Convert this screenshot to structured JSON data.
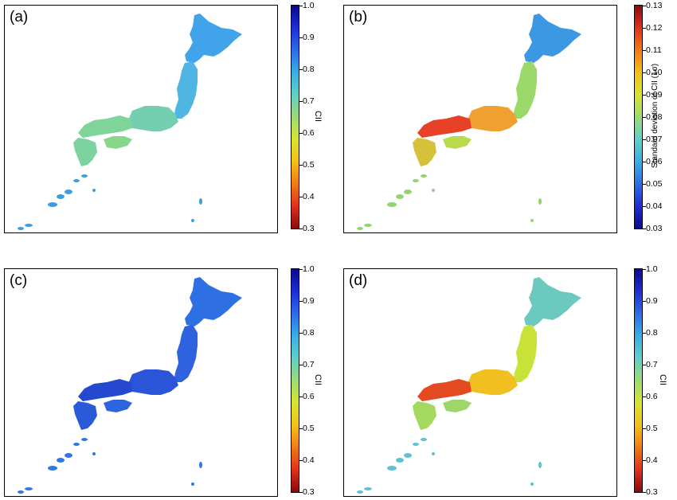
{
  "panels": [
    {
      "id": "a",
      "label": "(a)",
      "scheme": "cii",
      "colorbar": {
        "title": "CII",
        "ticks": [
          "1.0",
          "0.9",
          "0.8",
          "0.7",
          "0.6",
          "0.5",
          "0.4",
          "0.3"
        ]
      },
      "regions": {
        "hokkaido": "#41a3ea",
        "north": "#4fb5e3",
        "central": "#73cfb0",
        "west": "#7fd49a",
        "shikoku": "#88d68e",
        "kyushu": "#7cd3a0",
        "islands": "#3c9ee0"
      }
    },
    {
      "id": "b",
      "label": "(b)",
      "scheme": "std",
      "colorbar": {
        "title": "Standard deviation of CII (1σ)",
        "ticks": [
          "0.13",
          "0.12",
          "0.11",
          "0.10",
          "0.09",
          "0.08",
          "0.07",
          "0.06",
          "0.05",
          "0.04",
          "0.03"
        ]
      },
      "regions": {
        "hokkaido": "#3d98e4",
        "north": "#9ad86a",
        "central": "#f0a030",
        "west": "#e8412a",
        "shikoku": "#b8db4e",
        "kyushu": "#d6c23a",
        "islands": "#8fd670"
      }
    },
    {
      "id": "c",
      "label": "(c)",
      "scheme": "cii",
      "colorbar": {
        "title": "CII",
        "ticks": [
          "1.0",
          "0.9",
          "0.8",
          "0.7",
          "0.6",
          "0.5",
          "0.4",
          "0.3"
        ]
      },
      "regions": {
        "hokkaido": "#2f6fe4",
        "north": "#2e62de",
        "central": "#2a55d8",
        "west": "#2448d0",
        "shikoku": "#2d66dc",
        "kyushu": "#2a5ad8",
        "islands": "#2d78e6"
      }
    },
    {
      "id": "d",
      "label": "(d)",
      "scheme": "cii",
      "colorbar": {
        "title": "CII",
        "ticks": [
          "1.0",
          "0.9",
          "0.8",
          "0.7",
          "0.6",
          "0.5",
          "0.4",
          "0.3"
        ]
      },
      "regions": {
        "hokkaido": "#6cc9c0",
        "north": "#c8e23a",
        "central": "#f0c020",
        "west": "#e44a22",
        "shikoku": "#9ed66a",
        "kyushu": "#a5d85e",
        "islands": "#5fc1d4"
      }
    }
  ],
  "colormaps": {
    "cii": [
      "#0a0a8a",
      "#1b2ed6",
      "#2a6ee8",
      "#3aaee6",
      "#5fd0c6",
      "#9adc74",
      "#d8e42e",
      "#f5c018",
      "#f27a14",
      "#e0301c",
      "#8b0a0a"
    ],
    "std": [
      "#8b0a0a",
      "#e0301c",
      "#f27a14",
      "#f5c018",
      "#d8e42e",
      "#9adc74",
      "#5fd0c6",
      "#3aaee6",
      "#2a6ee8",
      "#1b2ed6",
      "#0a0a8a"
    ]
  }
}
